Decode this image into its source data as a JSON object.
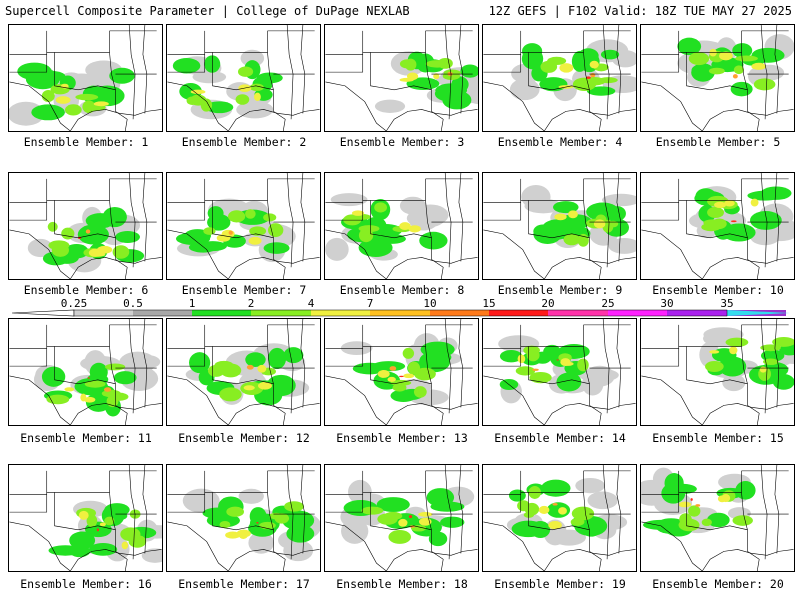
{
  "header": {
    "left": "Supercell Composite Parameter | College of DuPage NEXLAB",
    "right": "12Z GEFS | F102 Valid: 18Z TUE MAY 27 2025"
  },
  "colorbar": {
    "labels": [
      "0.25",
      "0.5",
      "1",
      "2",
      "4",
      "7",
      "10",
      "15",
      "20",
      "25",
      "30",
      "35"
    ],
    "colors": [
      "#d0d0d0",
      "#a8a8a8",
      "#22e022",
      "#88ee22",
      "#f0f040",
      "#ffc020",
      "#ff7a1a",
      "#ff1a1a",
      "#ff33aa",
      "#ff22ff",
      "#aa22ee",
      "#9933cc",
      "#33ddee"
    ]
  },
  "colors": {
    "bg": "#ffffff",
    "land": "#ffffff",
    "border": "#000000",
    "gray_light": "#d0d0d0",
    "green": "#22e022",
    "lime": "#88ee22",
    "yellow": "#f0f040",
    "orange": "#ffa030",
    "red": "#ff2a1a"
  },
  "panels": [
    {
      "label": "Ensemble Member: 1"
    },
    {
      "label": "Ensemble Member: 2"
    },
    {
      "label": "Ensemble Member: 3"
    },
    {
      "label": "Ensemble Member: 4"
    },
    {
      "label": "Ensemble Member: 5"
    },
    {
      "label": "Ensemble Member: 6"
    },
    {
      "label": "Ensemble Member: 7"
    },
    {
      "label": "Ensemble Member: 8"
    },
    {
      "label": "Ensemble Member: 9"
    },
    {
      "label": "Ensemble Member: 10"
    },
    {
      "label": "Ensemble Member: 11"
    },
    {
      "label": "Ensemble Member: 12"
    },
    {
      "label": "Ensemble Member: 13"
    },
    {
      "label": "Ensemble Member: 14"
    },
    {
      "label": "Ensemble Member: 15"
    },
    {
      "label": "Ensemble Member: 16"
    },
    {
      "label": "Ensemble Member: 17"
    },
    {
      "label": "Ensemble Member: 18"
    },
    {
      "label": "Ensemble Member: 19"
    },
    {
      "label": "Ensemble Member: 20"
    }
  ]
}
